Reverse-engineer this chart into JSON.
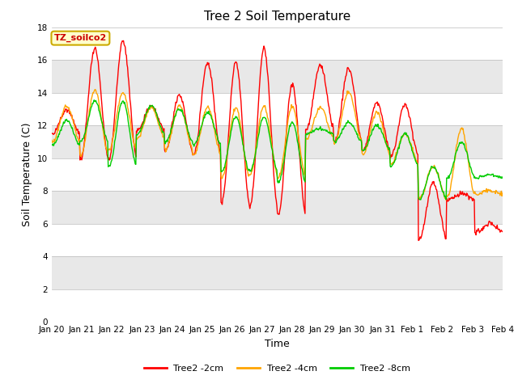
{
  "title": "Tree 2 Soil Temperature",
  "xlabel": "Time",
  "ylabel": "Soil Temperature (C)",
  "ylim": [
    0,
    18
  ],
  "yticks": [
    0,
    2,
    4,
    6,
    8,
    10,
    12,
    14,
    16,
    18
  ],
  "legend_label": "TZ_soilco2",
  "series_labels": [
    "Tree2 -2cm",
    "Tree2 -4cm",
    "Tree2 -8cm"
  ],
  "series_colors": [
    "#FF0000",
    "#FFA500",
    "#00CC00"
  ],
  "line_width": 1.0,
  "background_color": "#FFFFFF",
  "plot_bg_color": "#FFFFFF",
  "band_colors": [
    "#FFFFFF",
    "#E8E8E8"
  ],
  "grid_color": "#CCCCCC",
  "tick_labels": [
    "Jan 20",
    "Jan 21",
    "Jan 22",
    "Jan 23",
    "Jan 24",
    "Jan 25",
    "Jan 26",
    "Jan 27",
    "Jan 28",
    "Jan 29",
    "Jan 30",
    "Jan 31",
    "Feb 1",
    "Feb 2",
    "Feb 3",
    "Feb 4"
  ],
  "title_fontsize": 11,
  "axis_label_fontsize": 9,
  "tick_fontsize": 7.5
}
